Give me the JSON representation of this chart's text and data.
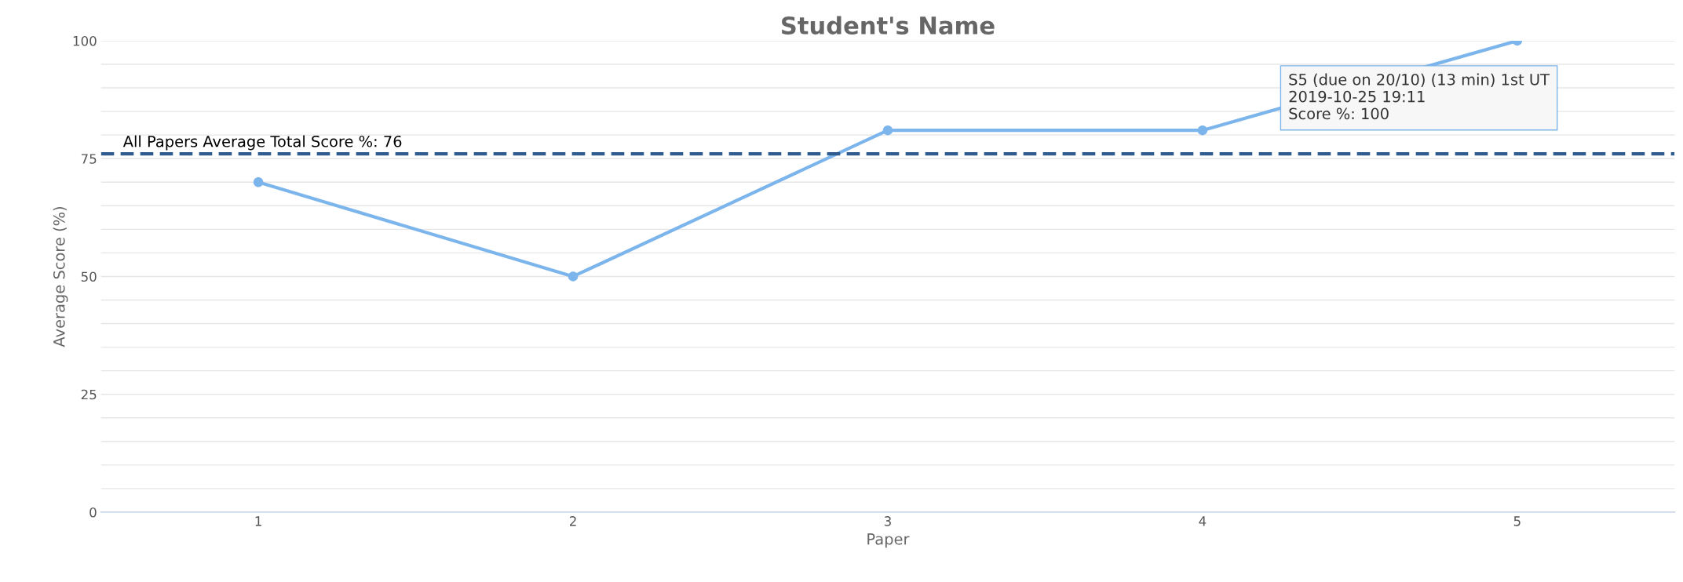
{
  "chart_data": {
    "type": "line",
    "title": "Student's Name",
    "xlabel": "Paper",
    "ylabel": "Average Score (%)",
    "categories": [
      "1",
      "2",
      "3",
      "4",
      "5"
    ],
    "series": [
      {
        "color": "#7cb5ec",
        "values": [
          70,
          50,
          81,
          81,
          100
        ]
      }
    ],
    "marker": "circle",
    "line_style": "solid",
    "ylim": [
      0,
      100
    ],
    "yticks": [
      0,
      {
        "value": 5,
        "label": null
      },
      {
        "value": 10,
        "label": null
      },
      {
        "value": 15,
        "label": null
      },
      {
        "value": 20,
        "label": null
      },
      25,
      {
        "value": 30,
        "label": null
      },
      {
        "value": 35,
        "label": null
      },
      {
        "value": 40,
        "label": null
      },
      {
        "value": 45,
        "label": null
      },
      50,
      {
        "value": 55,
        "label": null
      },
      {
        "value": 60,
        "label": null
      },
      {
        "value": 65,
        "label": null
      },
      {
        "value": 70,
        "label": null
      },
      75,
      {
        "value": 80,
        "label": null
      },
      {
        "value": 85,
        "label": null
      },
      {
        "value": 90,
        "label": null
      },
      {
        "value": 95,
        "label": null
      },
      100
    ],
    "grid": "y",
    "ref_lines": [
      {
        "axis": "y",
        "value": 76,
        "label": "All Papers Average Total Score %: 76",
        "color": "#2f5b8f",
        "line_style": "dashed"
      }
    ],
    "annotations": [
      {
        "text": "S5 (due on 20/10) (13 min) 1st UT\n2019-10-25 19:11\nScore %: 100",
        "x": "5",
        "y": 100
      }
    ]
  }
}
